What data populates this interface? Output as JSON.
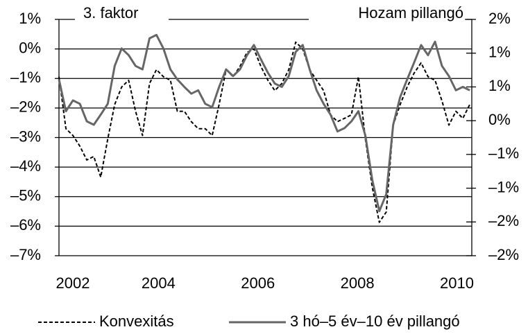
{
  "chart_data": {
    "type": "line",
    "title": "3. faktor",
    "subtitle": "Hozam pillangó",
    "x": [
      2002.0,
      2002.14,
      2002.28,
      2002.42,
      2002.56,
      2002.7,
      2002.84,
      2002.98,
      2003.12,
      2003.26,
      2003.4,
      2003.54,
      2003.68,
      2003.82,
      2003.96,
      2004.1,
      2004.24,
      2004.38,
      2004.52,
      2004.66,
      2004.8,
      2004.94,
      2005.08,
      2005.22,
      2005.36,
      2005.5,
      2005.64,
      2005.78,
      2005.92,
      2006.06,
      2006.2,
      2006.34,
      2006.48,
      2006.62,
      2006.76,
      2006.9,
      2007.04,
      2007.18,
      2007.32,
      2007.46,
      2007.6,
      2007.74,
      2007.88,
      2008.02,
      2008.16,
      2008.3,
      2008.44,
      2008.58,
      2008.72,
      2008.86,
      2009.0,
      2009.14,
      2009.28,
      2009.42,
      2009.56,
      2009.7,
      2009.84,
      2009.98,
      2010.12,
      2010.26
    ],
    "series": [
      {
        "name": "Konvexitás",
        "color": "#000000",
        "dash": "dashed",
        "values": [
          -0.94,
          -2.7,
          -2.93,
          -3.29,
          -3.76,
          -3.64,
          -4.34,
          -3.05,
          -1.88,
          -1.29,
          -1.06,
          -2.11,
          -2.93,
          -1.17,
          -0.7,
          -0.94,
          -1.06,
          -2.11,
          -2.11,
          -2.46,
          -2.7,
          -2.7,
          -2.93,
          -1.88,
          -0.7,
          -0.94,
          -0.59,
          -0.12,
          0.0,
          -0.59,
          -1.06,
          -1.41,
          -1.17,
          -0.7,
          0.23,
          0.0,
          -0.7,
          -1.06,
          -1.41,
          -2.23,
          -2.46,
          -2.35,
          -2.23,
          -0.94,
          -3.05,
          -4.69,
          -5.87,
          -5.52,
          -2.58,
          -1.88,
          -1.29,
          -0.82,
          -0.47,
          -0.94,
          -1.06,
          -1.76,
          -2.58,
          -2.11,
          -2.35,
          -1.88
        ]
      },
      {
        "name": "3 hó–5 év–10 év pillangó",
        "color": "#666666",
        "dash": "solid",
        "axis": "y2",
        "values": [
          0.61,
          0.14,
          0.3,
          0.25,
          -0.01,
          -0.06,
          0.09,
          0.25,
          0.81,
          1.07,
          0.97,
          0.81,
          0.76,
          1.22,
          1.27,
          1.07,
          0.76,
          0.61,
          0.5,
          0.4,
          0.45,
          0.25,
          0.2,
          0.5,
          0.76,
          0.66,
          0.76,
          0.97,
          1.12,
          0.91,
          0.71,
          0.55,
          0.5,
          0.66,
          1.02,
          1.12,
          0.76,
          0.45,
          0.25,
          0.09,
          -0.16,
          -0.11,
          -0.01,
          0.14,
          -0.22,
          -0.88,
          -1.34,
          -1.09,
          -0.06,
          0.35,
          0.61,
          0.86,
          1.12,
          0.97,
          1.17,
          0.81,
          0.66,
          0.45,
          0.5,
          0.45
        ]
      }
    ],
    "xlim": [
      2002,
      2010.3
    ],
    "xticks": [
      2002,
      2004,
      2006,
      2008,
      2010
    ],
    "ylim": [
      -7,
      1
    ],
    "yticks": [
      {
        "value": -7,
        "label": "–7%"
      },
      {
        "value": -6,
        "label": "–6%"
      },
      {
        "value": -5,
        "label": "–5%"
      },
      {
        "value": -4,
        "label": "–4%"
      },
      {
        "value": -3,
        "label": "–3%"
      },
      {
        "value": -2,
        "label": "–2%"
      },
      {
        "value": -1,
        "label": "–1%"
      },
      {
        "value": 0,
        "label": "0%"
      },
      {
        "value": 1,
        "label": "1%"
      }
    ],
    "y2lim": [
      -2,
      1.5
    ],
    "y2ticks": [
      {
        "value": -2,
        "label": "–2%"
      },
      {
        "value": -1.5,
        "label": "–2%"
      },
      {
        "value": -1,
        "label": "–1%"
      },
      {
        "value": -0.5,
        "label": "–1%"
      },
      {
        "value": 0,
        "label": "0%"
      },
      {
        "value": 0.5,
        "label": "1%"
      },
      {
        "value": 1,
        "label": "1%"
      },
      {
        "value": 1.5,
        "label": "2%"
      }
    ],
    "grid": true,
    "legend": "bottom"
  }
}
